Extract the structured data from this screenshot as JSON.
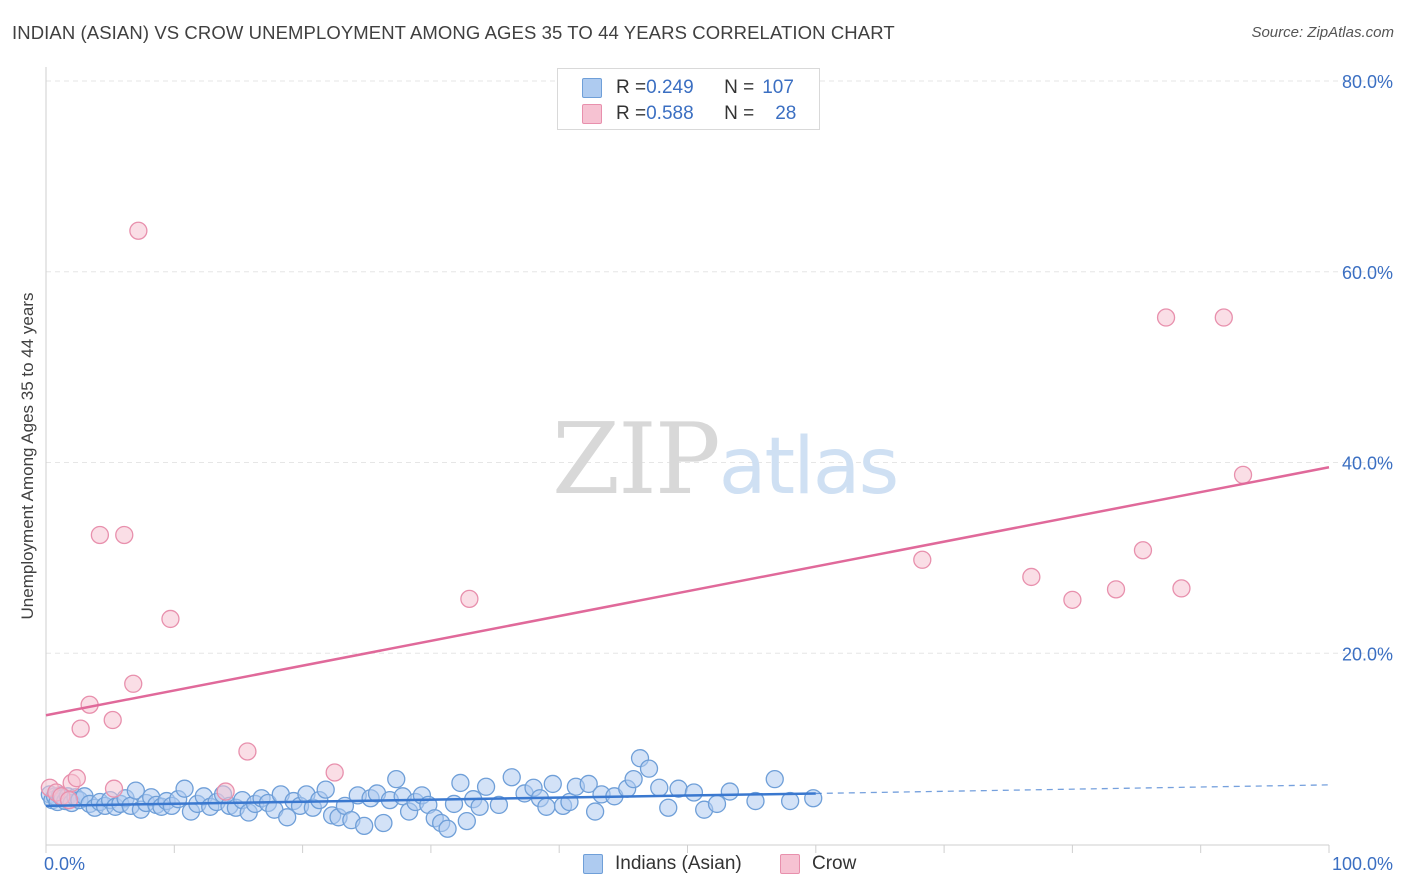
{
  "title": "INDIAN (ASIAN) VS CROW UNEMPLOYMENT AMONG AGES 35 TO 44 YEARS CORRELATION CHART",
  "source": "Source: ZipAtlas.com",
  "watermark": {
    "zip": "ZIP",
    "atlas": "atlas"
  },
  "legend": {
    "rows": [
      {
        "r_label": "R = ",
        "r_value": "0.249",
        "n_label": "N = ",
        "n_value": "107"
      },
      {
        "r_label": "R = ",
        "r_value": "0.588",
        "n_label": "N = ",
        "n_value": "28"
      }
    ]
  },
  "bottom_legend": [
    "Indians (Asian)",
    "Crow"
  ],
  "colors": {
    "blue_fill": "#aecbf0",
    "blue_stroke": "#6f9fd8",
    "blue_line": "#3a78cf",
    "pink_fill": "#f6c2d2",
    "pink_stroke": "#e890ad",
    "pink_line": "#e0699a",
    "tick_label": "#3b6fc2",
    "grid": "#e6e6e6"
  },
  "chart_data": {
    "type": "scatter",
    "title": "INDIAN (ASIAN) VS CROW UNEMPLOYMENT AMONG AGES 35 TO 44 YEARS CORRELATION CHART",
    "xlabel": "",
    "ylabel": "Unemployment Among Ages 35 to 44 years",
    "xlim": [
      0,
      100
    ],
    "ylim": [
      0,
      80
    ],
    "x_tick_labels": [
      "0.0%",
      "100.0%"
    ],
    "y_ticks": [
      20,
      40,
      60,
      80
    ],
    "y_tick_labels": [
      "20.0%",
      "40.0%",
      "60.0%",
      "80.0%"
    ],
    "grid": true,
    "series": [
      {
        "name": "Indians (Asian)",
        "r": 0.249,
        "n": 107,
        "trend": {
          "x0": 0,
          "y0": 4.0,
          "x1": 60,
          "y1": 5.3,
          "dashed_to_x": 100,
          "dashed_to_y": 6.2
        },
        "points": [
          [
            0.3,
            5.2
          ],
          [
            0.5,
            4.6
          ],
          [
            0.7,
            5.0
          ],
          [
            0.9,
            4.4
          ],
          [
            1.1,
            5.1
          ],
          [
            1.3,
            4.8
          ],
          [
            1.5,
            4.5
          ],
          [
            1.7,
            5.0
          ],
          [
            2.0,
            4.3
          ],
          [
            2.3,
            4.9
          ],
          [
            2.6,
            4.6
          ],
          [
            3.0,
            5.0
          ],
          [
            3.4,
            4.2
          ],
          [
            3.8,
            3.8
          ],
          [
            4.2,
            4.4
          ],
          [
            4.6,
            4.0
          ],
          [
            5.0,
            4.6
          ],
          [
            5.4,
            3.9
          ],
          [
            5.8,
            4.2
          ],
          [
            6.2,
            4.8
          ],
          [
            6.6,
            4.0
          ],
          [
            7.0,
            5.6
          ],
          [
            7.4,
            3.6
          ],
          [
            7.8,
            4.3
          ],
          [
            8.2,
            4.9
          ],
          [
            8.6,
            4.1
          ],
          [
            9.0,
            3.9
          ],
          [
            9.4,
            4.5
          ],
          [
            9.8,
            4.0
          ],
          [
            10.3,
            4.7
          ],
          [
            10.8,
            5.8
          ],
          [
            11.3,
            3.4
          ],
          [
            11.8,
            4.2
          ],
          [
            12.3,
            5.0
          ],
          [
            12.8,
            3.9
          ],
          [
            13.3,
            4.4
          ],
          [
            13.8,
            5.2
          ],
          [
            14.3,
            4.0
          ],
          [
            14.8,
            3.8
          ],
          [
            15.3,
            4.6
          ],
          [
            15.8,
            3.3
          ],
          [
            16.3,
            4.2
          ],
          [
            16.8,
            4.8
          ],
          [
            17.3,
            4.3
          ],
          [
            17.8,
            3.6
          ],
          [
            18.3,
            5.2
          ],
          [
            18.8,
            2.8
          ],
          [
            19.3,
            4.5
          ],
          [
            19.8,
            4.0
          ],
          [
            20.3,
            5.2
          ],
          [
            20.8,
            3.8
          ],
          [
            21.3,
            4.6
          ],
          [
            21.8,
            5.7
          ],
          [
            22.3,
            3.0
          ],
          [
            22.8,
            2.8
          ],
          [
            23.3,
            4.0
          ],
          [
            23.8,
            2.5
          ],
          [
            24.3,
            5.1
          ],
          [
            24.8,
            1.9
          ],
          [
            25.3,
            4.8
          ],
          [
            25.8,
            5.3
          ],
          [
            26.3,
            2.2
          ],
          [
            26.8,
            4.6
          ],
          [
            27.3,
            6.8
          ],
          [
            27.8,
            5.0
          ],
          [
            28.3,
            3.4
          ],
          [
            28.8,
            4.4
          ],
          [
            29.3,
            5.1
          ],
          [
            29.8,
            4.1
          ],
          [
            30.3,
            2.7
          ],
          [
            30.8,
            2.2
          ],
          [
            31.3,
            1.6
          ],
          [
            31.8,
            4.2
          ],
          [
            32.3,
            6.4
          ],
          [
            32.8,
            2.4
          ],
          [
            33.3,
            4.7
          ],
          [
            33.8,
            3.9
          ],
          [
            34.3,
            6.0
          ],
          [
            35.3,
            4.1
          ],
          [
            36.3,
            7.0
          ],
          [
            37.3,
            5.3
          ],
          [
            38.0,
            5.9
          ],
          [
            38.5,
            4.8
          ],
          [
            39.0,
            3.9
          ],
          [
            39.5,
            6.3
          ],
          [
            40.3,
            4.0
          ],
          [
            40.8,
            4.4
          ],
          [
            41.3,
            6.0
          ],
          [
            42.3,
            6.3
          ],
          [
            42.8,
            3.4
          ],
          [
            43.3,
            5.2
          ],
          [
            44.3,
            5.0
          ],
          [
            45.3,
            5.8
          ],
          [
            45.8,
            6.8
          ],
          [
            46.3,
            9.0
          ],
          [
            47.0,
            7.9
          ],
          [
            47.8,
            5.9
          ],
          [
            48.5,
            3.8
          ],
          [
            49.3,
            5.8
          ],
          [
            50.5,
            5.4
          ],
          [
            51.3,
            3.6
          ],
          [
            52.3,
            4.2
          ],
          [
            53.3,
            5.5
          ],
          [
            55.3,
            4.5
          ],
          [
            56.8,
            6.8
          ],
          [
            58.0,
            4.5
          ],
          [
            59.8,
            4.8
          ]
        ]
      },
      {
        "name": "Crow",
        "r": 0.588,
        "n": 28,
        "trend": {
          "x0": 0,
          "y0": 13.5,
          "x1": 100,
          "y1": 39.5
        },
        "points": [
          [
            0.3,
            5.9
          ],
          [
            0.8,
            5.4
          ],
          [
            1.2,
            5.0
          ],
          [
            1.8,
            4.6
          ],
          [
            2.0,
            6.4
          ],
          [
            2.4,
            6.9
          ],
          [
            2.7,
            12.1
          ],
          [
            3.4,
            14.6
          ],
          [
            4.2,
            32.4
          ],
          [
            5.2,
            13.0
          ],
          [
            5.3,
            5.8
          ],
          [
            6.1,
            32.4
          ],
          [
            6.8,
            16.8
          ],
          [
            7.2,
            64.3
          ],
          [
            9.7,
            23.6
          ],
          [
            14.0,
            5.5
          ],
          [
            15.7,
            9.7
          ],
          [
            22.5,
            7.5
          ],
          [
            33.0,
            25.7
          ],
          [
            68.3,
            29.8
          ],
          [
            76.8,
            28.0
          ],
          [
            80.0,
            25.6
          ],
          [
            83.4,
            26.7
          ],
          [
            85.5,
            30.8
          ],
          [
            87.3,
            55.2
          ],
          [
            88.5,
            26.8
          ],
          [
            91.8,
            55.2
          ],
          [
            93.3,
            38.7
          ]
        ]
      }
    ]
  }
}
